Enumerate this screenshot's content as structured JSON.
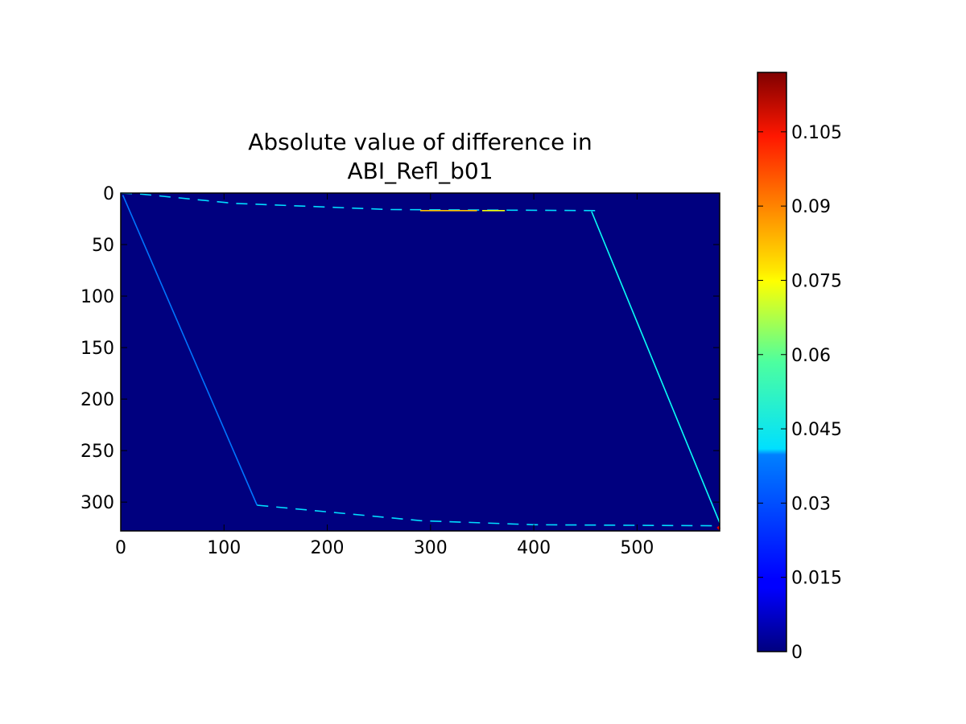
{
  "chart_data": {
    "type": "heatmap",
    "title_lines": [
      "Absolute value of difference in",
      "ABI_Refl_b01"
    ],
    "image_extent": {
      "x": [
        0,
        580
      ],
      "y": [
        328,
        0
      ]
    },
    "background_value": 0,
    "x_ticks": [
      "0",
      "100",
      "200",
      "300",
      "400",
      "500"
    ],
    "x_tick_values": [
      0,
      100,
      200,
      300,
      400,
      500
    ],
    "y_ticks": [
      "0",
      "50",
      "100",
      "150",
      "200",
      "250",
      "300"
    ],
    "y_tick_values": [
      0,
      50,
      100,
      150,
      200,
      250,
      300
    ],
    "colorbar": {
      "colormap": "jet",
      "range": [
        0,
        0.117
      ],
      "ticks": [
        "0",
        "0.015",
        "0.03",
        "0.045",
        "0.06",
        "0.075",
        "0.09",
        "0.105"
      ],
      "tick_values": [
        0,
        0.015,
        0.03,
        0.045,
        0.06,
        0.075,
        0.09,
        0.105
      ]
    },
    "features": [
      {
        "name": "top-edge",
        "points": [
          [
            0,
            0
          ],
          [
            20,
            1
          ],
          [
            110,
            10
          ],
          [
            260,
            16
          ],
          [
            460,
            17
          ]
        ],
        "value": 0.04,
        "dashed": true
      },
      {
        "name": "top-edge-highlight",
        "points": [
          [
            290,
            17
          ],
          [
            345,
            17
          ]
        ],
        "value": 0.08,
        "dashed": false
      },
      {
        "name": "top-edge-highlight-2",
        "points": [
          [
            350,
            17
          ],
          [
            372,
            17
          ]
        ],
        "value": 0.072,
        "dashed": false
      },
      {
        "name": "left-edge",
        "points": [
          [
            2,
            2
          ],
          [
            132,
            303
          ]
        ],
        "value": 0.028,
        "dashed": false
      },
      {
        "name": "bottom-edge",
        "points": [
          [
            132,
            303
          ],
          [
            290,
            318
          ],
          [
            400,
            322
          ],
          [
            580,
            323
          ]
        ],
        "value": 0.04,
        "dashed": true
      },
      {
        "name": "right-edge",
        "points": [
          [
            456,
            18
          ],
          [
            580,
            320
          ]
        ],
        "value": 0.045,
        "dashed": false
      },
      {
        "name": "corner-spot",
        "points": [
          [
            578,
            324
          ],
          [
            580,
            326
          ]
        ],
        "value": 0.105,
        "dashed": false
      }
    ]
  }
}
